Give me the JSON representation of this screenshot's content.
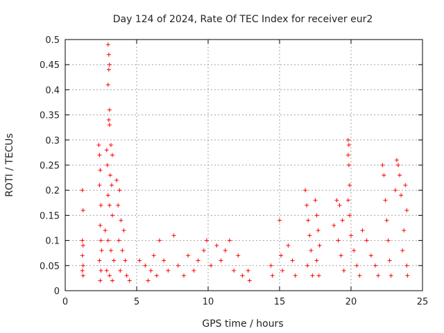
{
  "chart_data": {
    "type": "scatter",
    "title": "Day 124 of 2024, Rate Of TEC Index for receiver eur2",
    "xlabel": "GPS time / hours",
    "ylabel": "ROTI / TECUs",
    "xlim": [
      0,
      25
    ],
    "ylim": [
      0,
      0.5
    ],
    "x_ticks": [
      "0",
      "5",
      "10",
      "15",
      "20",
      "25"
    ],
    "y_ticks": [
      "0",
      "0.05",
      "0.1",
      "0.15",
      "0.2",
      "0.25",
      "0.3",
      "0.35",
      "0.4",
      "0.45",
      "0.5"
    ],
    "grid": true,
    "marker": "plus",
    "color": "#ff0000",
    "series": [
      {
        "points": [
          [
            1.2,
            0.2
          ],
          [
            1.25,
            0.16
          ],
          [
            1.2,
            0.1
          ],
          [
            1.25,
            0.09
          ],
          [
            1.2,
            0.07
          ],
          [
            1.25,
            0.05
          ],
          [
            1.2,
            0.04
          ],
          [
            1.25,
            0.03
          ],
          [
            2.35,
            0.29
          ],
          [
            2.4,
            0.27
          ],
          [
            2.45,
            0.24
          ],
          [
            2.4,
            0.21
          ],
          [
            2.5,
            0.17
          ],
          [
            2.45,
            0.13
          ],
          [
            2.5,
            0.1
          ],
          [
            2.55,
            0.08
          ],
          [
            2.4,
            0.06
          ],
          [
            2.5,
            0.04
          ],
          [
            2.45,
            0.02
          ],
          [
            3.0,
            0.49
          ],
          [
            3.05,
            0.47
          ],
          [
            3.1,
            0.45
          ],
          [
            3.05,
            0.44
          ],
          [
            3.0,
            0.41
          ],
          [
            3.1,
            0.36
          ],
          [
            3.05,
            0.34
          ],
          [
            3.1,
            0.33
          ],
          [
            2.9,
            0.28
          ],
          [
            3.2,
            0.29
          ],
          [
            3.3,
            0.27
          ],
          [
            2.95,
            0.25
          ],
          [
            3.15,
            0.23
          ],
          [
            3.25,
            0.21
          ],
          [
            3.0,
            0.19
          ],
          [
            3.1,
            0.17
          ],
          [
            3.3,
            0.15
          ],
          [
            2.8,
            0.12
          ],
          [
            3.0,
            0.1
          ],
          [
            3.2,
            0.08
          ],
          [
            3.4,
            0.06
          ],
          [
            2.9,
            0.04
          ],
          [
            3.1,
            0.03
          ],
          [
            3.3,
            0.02
          ],
          [
            3.6,
            0.22
          ],
          [
            3.8,
            0.2
          ],
          [
            3.7,
            0.17
          ],
          [
            3.9,
            0.14
          ],
          [
            4.1,
            0.12
          ],
          [
            3.75,
            0.1
          ],
          [
            4.0,
            0.08
          ],
          [
            4.2,
            0.06
          ],
          [
            3.85,
            0.04
          ],
          [
            4.3,
            0.03
          ],
          [
            4.5,
            0.02
          ],
          [
            5.2,
            0.06
          ],
          [
            5.6,
            0.05
          ],
          [
            6.0,
            0.04
          ],
          [
            6.4,
            0.03
          ],
          [
            5.8,
            0.02
          ],
          [
            6.2,
            0.07
          ],
          [
            6.6,
            0.1
          ],
          [
            6.9,
            0.06
          ],
          [
            7.2,
            0.04
          ],
          [
            7.6,
            0.11
          ],
          [
            7.9,
            0.05
          ],
          [
            8.3,
            0.03
          ],
          [
            8.6,
            0.07
          ],
          [
            9.0,
            0.04
          ],
          [
            9.3,
            0.06
          ],
          [
            9.7,
            0.08
          ],
          [
            9.9,
            0.1
          ],
          [
            10.2,
            0.05
          ],
          [
            10.6,
            0.09
          ],
          [
            10.9,
            0.06
          ],
          [
            11.2,
            0.08
          ],
          [
            11.5,
            0.1
          ],
          [
            11.8,
            0.04
          ],
          [
            12.1,
            0.07
          ],
          [
            12.4,
            0.03
          ],
          [
            12.8,
            0.04
          ],
          [
            12.9,
            0.02
          ],
          [
            14.4,
            0.05
          ],
          [
            14.5,
            0.03
          ],
          [
            15.0,
            0.14
          ],
          [
            15.1,
            0.07
          ],
          [
            15.2,
            0.04
          ],
          [
            15.6,
            0.09
          ],
          [
            15.9,
            0.06
          ],
          [
            16.1,
            0.03
          ],
          [
            16.8,
            0.2
          ],
          [
            16.9,
            0.17
          ],
          [
            17.0,
            0.14
          ],
          [
            17.1,
            0.11
          ],
          [
            17.2,
            0.08
          ],
          [
            16.95,
            0.05
          ],
          [
            17.3,
            0.03
          ],
          [
            17.5,
            0.18
          ],
          [
            17.6,
            0.15
          ],
          [
            17.7,
            0.12
          ],
          [
            17.8,
            0.09
          ],
          [
            17.6,
            0.06
          ],
          [
            17.75,
            0.03
          ],
          [
            18.8,
            0.13
          ],
          [
            19.0,
            0.18
          ],
          [
            19.2,
            0.17
          ],
          [
            19.4,
            0.14
          ],
          [
            19.1,
            0.1
          ],
          [
            19.3,
            0.07
          ],
          [
            19.5,
            0.04
          ],
          [
            19.8,
            0.3
          ],
          [
            19.85,
            0.29
          ],
          [
            19.8,
            0.27
          ],
          [
            19.85,
            0.25
          ],
          [
            19.9,
            0.21
          ],
          [
            19.8,
            0.18
          ],
          [
            19.9,
            0.15
          ],
          [
            20.0,
            0.11
          ],
          [
            20.2,
            0.08
          ],
          [
            20.4,
            0.05
          ],
          [
            20.6,
            0.03
          ],
          [
            20.8,
            0.12
          ],
          [
            21.1,
            0.1
          ],
          [
            21.4,
            0.07
          ],
          [
            21.7,
            0.05
          ],
          [
            21.9,
            0.03
          ],
          [
            22.2,
            0.25
          ],
          [
            22.3,
            0.23
          ],
          [
            22.4,
            0.18
          ],
          [
            22.5,
            0.14
          ],
          [
            22.6,
            0.1
          ],
          [
            22.7,
            0.06
          ],
          [
            22.8,
            0.03
          ],
          [
            23.2,
            0.26
          ],
          [
            23.3,
            0.25
          ],
          [
            23.4,
            0.23
          ],
          [
            23.1,
            0.2
          ],
          [
            23.5,
            0.19
          ],
          [
            23.8,
            0.21
          ],
          [
            23.9,
            0.16
          ],
          [
            23.7,
            0.12
          ],
          [
            23.6,
            0.08
          ],
          [
            23.9,
            0.05
          ],
          [
            23.95,
            0.03
          ]
        ]
      }
    ]
  }
}
